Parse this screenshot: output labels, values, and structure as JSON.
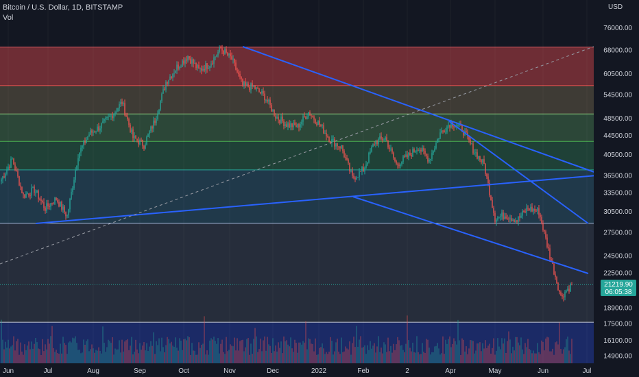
{
  "header": {
    "title": "Bitcoin / U.S. Dollar, 1D, BITSTAMP",
    "volume_label": "Vol",
    "currency": "USD"
  },
  "colors": {
    "background": "#131722",
    "up": "#26a69a",
    "down": "#ef5350",
    "trendline": "#2962ff",
    "price_tag": "#26a69a",
    "text": "#d1d4dc"
  },
  "chart_data": {
    "type": "candlestick",
    "x_axis": {
      "tick_labels": [
        "Jun",
        "Jul",
        "Aug",
        "Sep",
        "Oct",
        "Nov",
        "Dec",
        "2022",
        "Feb",
        "2",
        "Apr",
        "May",
        "Jun",
        "Jul"
      ]
    },
    "y_axis": {
      "scale": "log",
      "range": [
        14200,
        92000
      ],
      "tick_labels": [
        "76000.00",
        "68000.00",
        "60500.00",
        "54500.00",
        "48500.00",
        "44500.00",
        "40500.00",
        "36500.00",
        "33500.00",
        "30500.00",
        "27500.00",
        "24500.00",
        "22500.00",
        "18900.00",
        "17500.00",
        "16100.00",
        "14900.00"
      ]
    },
    "fib_levels": [
      {
        "price": 69000,
        "color": "#d3585f",
        "fill": "#6e2d35"
      },
      {
        "price": 57000,
        "color": "#ef5350",
        "fill": "#3e3b35"
      },
      {
        "price": 49500,
        "color": "#86c77a",
        "fill": "#2c4738"
      },
      {
        "price": 43200,
        "color": "#4caf50",
        "fill": "#1f4137"
      },
      {
        "price": 37500,
        "color": "#26a69a",
        "fill": "#20394a"
      },
      {
        "price": 28800,
        "color": "#a9c2e8",
        "fill": "#262d3b"
      },
      {
        "price": 17600,
        "color": "#c9cdd6",
        "fill": "#1b2a66"
      }
    ],
    "price_points": [
      [
        "Jun",
        35800
      ],
      [
        "Jun",
        39500
      ],
      [
        "Jun",
        33000
      ],
      [
        "Jul",
        34000
      ],
      [
        "Jul",
        31000
      ],
      [
        "Jul",
        32500
      ],
      [
        "Jul",
        29800
      ],
      [
        "Aug",
        40500
      ],
      [
        "Aug",
        44800
      ],
      [
        "Aug",
        46500
      ],
      [
        "Sep",
        49000
      ],
      [
        "Sep",
        52500
      ],
      [
        "Sep",
        44000
      ],
      [
        "Sep",
        42500
      ],
      [
        "Oct",
        48000
      ],
      [
        "Oct",
        58000
      ],
      [
        "Oct",
        62500
      ],
      [
        "Oct",
        66000
      ],
      [
        "Oct",
        61500
      ],
      [
        "Nov",
        63500
      ],
      [
        "Nov",
        68500
      ],
      [
        "Nov",
        65000
      ],
      [
        "Nov",
        57000
      ],
      [
        "Nov",
        56500
      ],
      [
        "Dec",
        54000
      ],
      [
        "Dec",
        49000
      ],
      [
        "Dec",
        47000
      ],
      [
        "Dec",
        46500
      ],
      [
        "2022",
        50000
      ],
      [
        "2022",
        47000
      ],
      [
        "2022",
        43500
      ],
      [
        "2022",
        42000
      ],
      [
        "2022",
        36000
      ],
      [
        "Feb",
        37500
      ],
      [
        "Feb",
        43000
      ],
      [
        "Feb",
        44000
      ],
      [
        "Feb",
        38500
      ],
      [
        "2",
        40000
      ],
      [
        "2",
        42000
      ],
      [
        "2",
        39500
      ],
      [
        "Apr",
        45000
      ],
      [
        "Apr",
        47500
      ],
      [
        "Apr",
        46000
      ],
      [
        "Apr",
        41500
      ],
      [
        "May",
        38500
      ],
      [
        "May",
        29500
      ],
      [
        "May",
        30000
      ],
      [
        "May",
        29200
      ],
      [
        "Jun",
        31000
      ],
      [
        "Jun",
        30500
      ],
      [
        "Jun",
        24500
      ],
      [
        "Jun",
        20000
      ],
      [
        "Jun",
        21219.9
      ]
    ],
    "last_price": "21219.90",
    "countdown": "06:05:38"
  }
}
